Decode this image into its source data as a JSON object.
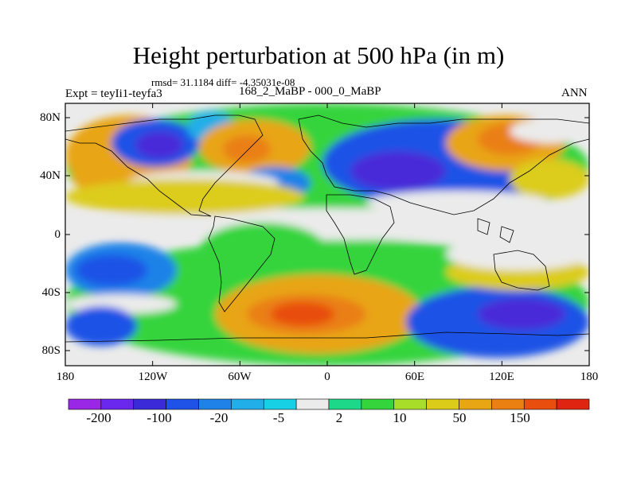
{
  "title": "Height perturbation at 500 hPa (in m)",
  "stats": "rmsd= 31.1184 diff= -4.35031e-08",
  "experiment": "Expt = teyIi1-teyfa3",
  "period": "168_2_MaBP - 000_0_MaBP",
  "season": "ANN",
  "lat_ticks": [
    "80N",
    "40N",
    "0",
    "40S",
    "80S"
  ],
  "lon_ticks": [
    "180",
    "120W",
    "60W",
    "0",
    "60E",
    "120E",
    "180"
  ],
  "colorbar": {
    "labels": [
      "-200",
      "-100",
      "-20",
      "-5",
      "2",
      "10",
      "50",
      "150"
    ],
    "colors": [
      "#9a27e6",
      "#6a27ee",
      "#3a2ad8",
      "#1f52e6",
      "#1f82e8",
      "#22aee8",
      "#18d0e6",
      "#ebebeb",
      "#1ed88a",
      "#35d43c",
      "#a8dd2a",
      "#dccc1a",
      "#e8a514",
      "#ea7f12",
      "#e84e0e",
      "#e02412"
    ]
  },
  "map_colors": {
    "deep_neg": "#4a2ad8",
    "strong_neg": "#1f52e6",
    "neg": "#1f82e8",
    "light_neg": "#22aee8",
    "near_zero": "#18d0e6",
    "white": "#ebebeb",
    "green": "#35d43c",
    "yellow": "#dccc1a",
    "orange": "#e8a514",
    "deep_orange": "#ea7f12",
    "red": "#e84e0e"
  }
}
